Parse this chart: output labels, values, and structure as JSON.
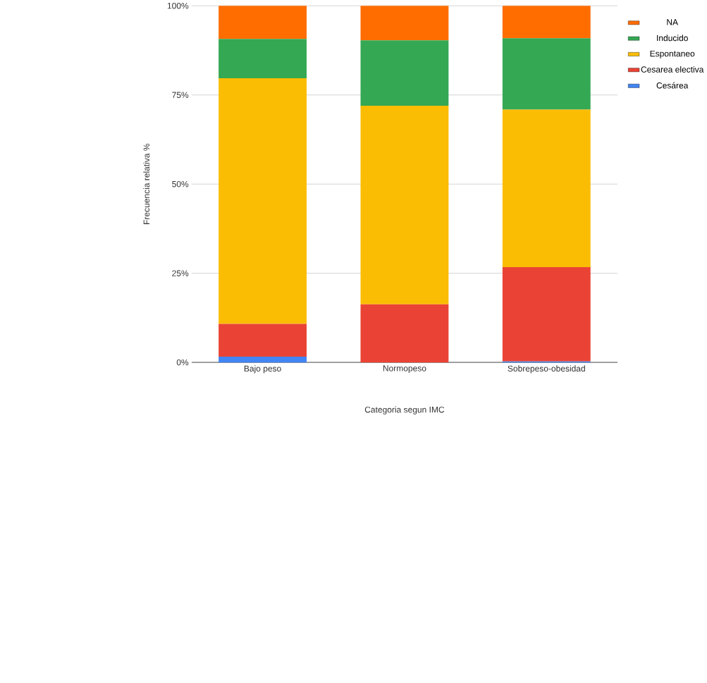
{
  "chart_data": {
    "type": "bar",
    "stacked": true,
    "xlabel": "Categoria segun IMC",
    "ylabel": "Frecuencia relativa %",
    "categories": [
      "Bajo peso",
      "Normopeso",
      "Sobrepeso-obesidad"
    ],
    "series": [
      {
        "name": "Cesárea",
        "color": "#4285f4",
        "values": [
          1.6,
          0,
          0.3
        ]
      },
      {
        "name": "Cesarea electiva",
        "color": "#ea4335",
        "values": [
          9.2,
          16.3,
          26.4
        ]
      },
      {
        "name": "Espontaneo",
        "color": "#fbbc04",
        "values": [
          68.9,
          55.7,
          44.2
        ]
      },
      {
        "name": "Inducido",
        "color": "#34a853",
        "values": [
          11.0,
          18.3,
          20.0
        ]
      },
      {
        "name": "NA",
        "color": "#ff6d01",
        "values": [
          9.3,
          9.7,
          9.1
        ]
      }
    ],
    "ylim": [
      0,
      100
    ],
    "yticks": [
      {
        "value": 0,
        "label": "0%"
      },
      {
        "value": 25,
        "label": "25%"
      },
      {
        "value": 50,
        "label": "50%"
      },
      {
        "value": 75,
        "label": "75%"
      },
      {
        "value": 100,
        "label": "100%"
      }
    ],
    "grid": "y",
    "legend": "right"
  }
}
